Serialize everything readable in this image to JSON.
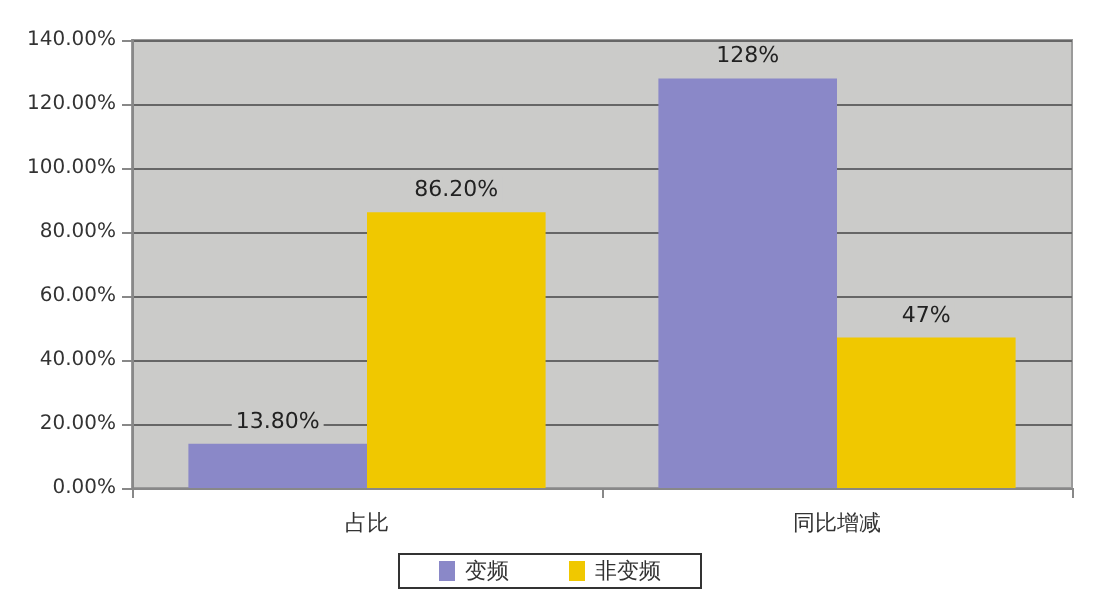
{
  "chart_data": {
    "type": "bar",
    "categories": [
      "占比",
      "同比增减"
    ],
    "series": [
      {
        "name": "变频",
        "color": "#8a88c8",
        "values": [
          13.8,
          128
        ],
        "value_labels": [
          "13.80%",
          "128%"
        ]
      },
      {
        "name": "非变频",
        "color": "#f0c800",
        "values": [
          86.2,
          47
        ],
        "value_labels": [
          "86.20%",
          "47%"
        ]
      }
    ],
    "ylim": [
      0,
      140
    ],
    "yticks": [
      {
        "value": 0,
        "label": "0.00%"
      },
      {
        "value": 20,
        "label": "20.00%"
      },
      {
        "value": 40,
        "label": "40.00%"
      },
      {
        "value": 60,
        "label": "60.00%"
      },
      {
        "value": 80,
        "label": "80.00%"
      },
      {
        "value": 100,
        "label": "100.00%"
      },
      {
        "value": 120,
        "label": "120.00%"
      },
      {
        "value": 140,
        "label": "140.00%"
      }
    ],
    "grid": "y",
    "legend": "bottom"
  }
}
